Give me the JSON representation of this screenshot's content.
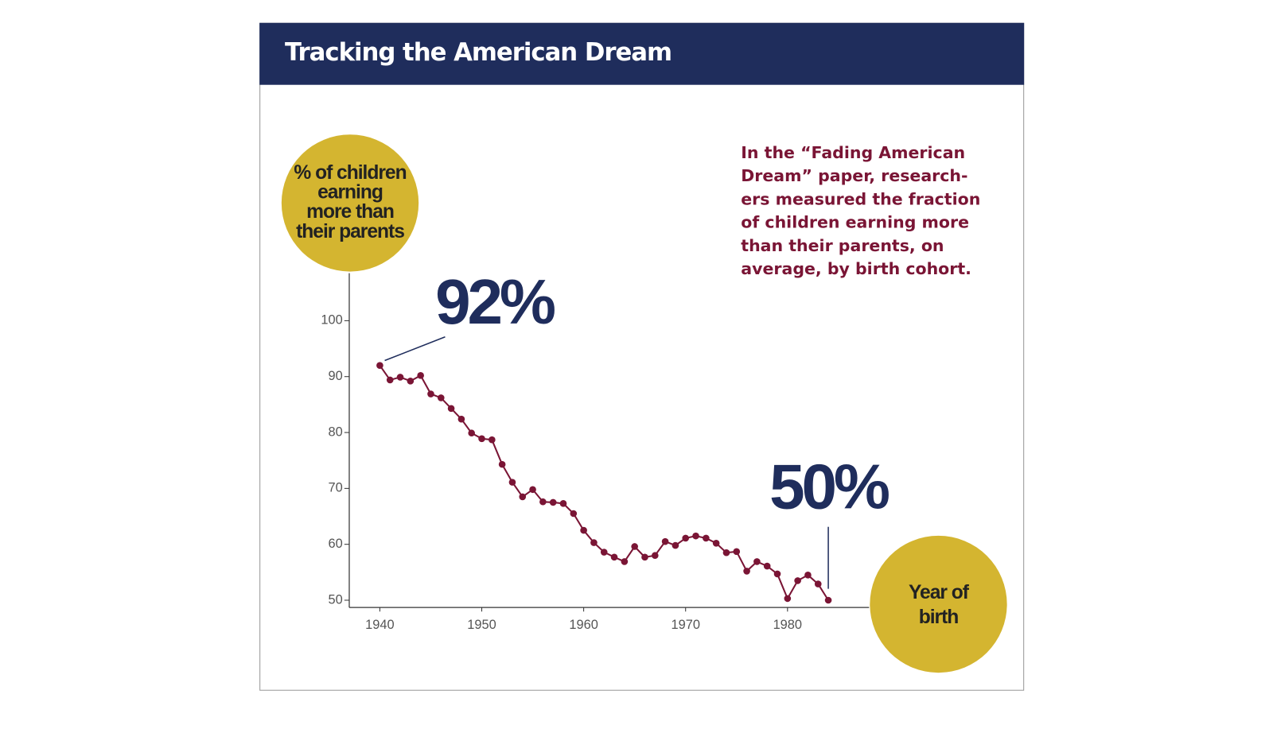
{
  "chart_data": {
    "type": "line",
    "title": "Tracking the American Dream",
    "ylabel": [
      "% of children",
      "earning",
      "more than",
      "their parents"
    ],
    "xlabel": [
      "Year of",
      "birth"
    ],
    "note": [
      "In the “Fading American",
      "Dream” paper, research-",
      "ers measured the fraction",
      "of children earning more",
      "than their parents, on",
      "average, by birth cohort."
    ],
    "annotations": [
      {
        "text": "92%",
        "x": 1940
      },
      {
        "text": "50%",
        "x": 1984
      }
    ],
    "x": [
      1940,
      1941,
      1942,
      1943,
      1944,
      1945,
      1946,
      1947,
      1948,
      1949,
      1950,
      1951,
      1952,
      1953,
      1954,
      1955,
      1956,
      1957,
      1958,
      1959,
      1960,
      1961,
      1962,
      1963,
      1964,
      1965,
      1966,
      1967,
      1968,
      1969,
      1970,
      1971,
      1972,
      1973,
      1974,
      1975,
      1976,
      1977,
      1978,
      1979,
      1980,
      1981,
      1982,
      1983,
      1984
    ],
    "series": [
      {
        "color": "#7a1535",
        "values": [
          92,
          89.4,
          89.9,
          89.2,
          90.2,
          86.9,
          86.2,
          84.3,
          82.4,
          79.9,
          78.9,
          78.7,
          74.3,
          71.1,
          68.5,
          69.8,
          67.6,
          67.5,
          67.3,
          65.5,
          62.5,
          60.3,
          58.6,
          57.7,
          56.9,
          59.6,
          57.7,
          58,
          60.5,
          59.8,
          61.1,
          61.5,
          61.1,
          60.2,
          58.5,
          58.7,
          55.2,
          56.9,
          56.1,
          54.7,
          50.3,
          53.5,
          54.5,
          52.9,
          50
        ]
      }
    ],
    "xlim": [
      1937,
      1988
    ],
    "ylim": [
      48.7,
      108.5
    ],
    "xticks": [
      1940,
      1950,
      1960,
      1970,
      1980
    ],
    "yticks": [
      50,
      60,
      70,
      80,
      90,
      100
    ]
  }
}
